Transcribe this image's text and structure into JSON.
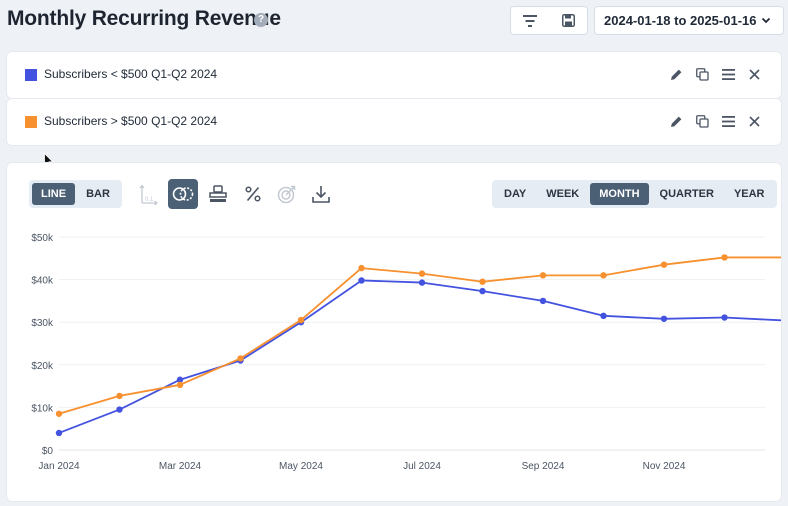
{
  "header": {
    "title": "Monthly Recurring Revenue",
    "help_glyph": "?",
    "filter_icon": "filter-icon",
    "save_icon": "save-icon",
    "date_range": "2024-01-18 to 2025-01-16"
  },
  "series_cards": [
    {
      "label": "Subscribers < $500 Q1-Q2 2024",
      "color": "#4353e0"
    },
    {
      "label": "Subscribers > $500 Q1-Q2 2024",
      "color": "#f7902e"
    }
  ],
  "toolbar": {
    "chart_types": [
      {
        "label": "LINE",
        "active": true
      },
      {
        "label": "BAR",
        "active": false
      }
    ],
    "tools": [
      "axis-icon",
      "compare-icon",
      "stack-icon",
      "percent-icon",
      "goal-icon",
      "download-icon"
    ],
    "periods": [
      {
        "label": "DAY",
        "active": false
      },
      {
        "label": "WEEK",
        "active": false
      },
      {
        "label": "MONTH",
        "active": true
      },
      {
        "label": "QUARTER",
        "active": false
      },
      {
        "label": "YEAR",
        "active": false
      }
    ]
  },
  "chart_data": {
    "type": "line",
    "x": [
      "2024-01",
      "2024-02",
      "2024-03",
      "2024-04",
      "2024-05",
      "2024-06",
      "2024-07",
      "2024-08",
      "2024-09",
      "2024-10",
      "2024-11",
      "2024-12",
      "2025-01"
    ],
    "x_tick_labels": [
      "Jan 2024",
      "Mar 2024",
      "May 2024",
      "Jul 2024",
      "Sep 2024",
      "Nov 2024"
    ],
    "y_tick_labels": [
      "$0",
      "$10k",
      "$20k",
      "$30k",
      "$40k",
      "$50k"
    ],
    "ylim": [
      0,
      50000
    ],
    "grid": true,
    "series": [
      {
        "name": "Subscribers < $500 Q1-Q2 2024",
        "color": "#4353e0",
        "values": [
          4000,
          9500,
          16500,
          21000,
          30000,
          39800,
          39300,
          37300,
          35000,
          31500,
          30800,
          31100,
          30400
        ]
      },
      {
        "name": "Subscribers > $500 Q1-Q2 2024",
        "color": "#f7902e",
        "values": [
          8500,
          12700,
          15300,
          21500,
          30500,
          42700,
          41400,
          39500,
          41000,
          41000,
          43500,
          45200,
          45200
        ]
      }
    ]
  }
}
